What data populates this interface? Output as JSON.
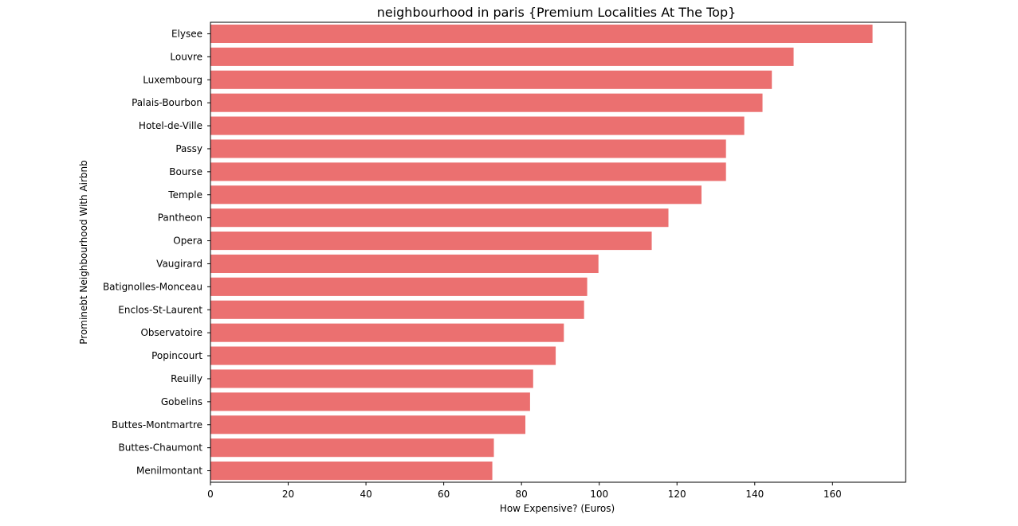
{
  "chart_data": {
    "type": "bar",
    "orientation": "horizontal",
    "title": "neighbourhood in paris {Premium Localities At The Top}",
    "xlabel": "How Expensive? (Euros)",
    "ylabel": "Prominebt Neighbourhood With Airbnb",
    "xlim": [
      0,
      178.8
    ],
    "xticks": [
      0,
      20,
      40,
      60,
      80,
      100,
      120,
      140,
      160
    ],
    "bar_color": "#eb7070",
    "grid": false,
    "categories": [
      "Elysee",
      "Louvre",
      "Luxembourg",
      "Palais-Bourbon",
      "Hotel-de-Ville",
      "Passy",
      "Bourse",
      "Temple",
      "Pantheon",
      "Opera",
      "Vaugirard",
      "Batignolles-Monceau",
      "Enclos-St-Laurent",
      "Observatoire",
      "Popincourt",
      "Reuilly",
      "Gobelins",
      "Buttes-Montmartre",
      "Buttes-Chaumont",
      "Menilmontant"
    ],
    "values": [
      170.3,
      150.0,
      144.4,
      142.0,
      137.3,
      132.6,
      132.6,
      126.3,
      117.8,
      113.5,
      99.8,
      96.9,
      96.1,
      90.9,
      88.8,
      83.0,
      82.2,
      81.0,
      72.9,
      72.5
    ]
  }
}
